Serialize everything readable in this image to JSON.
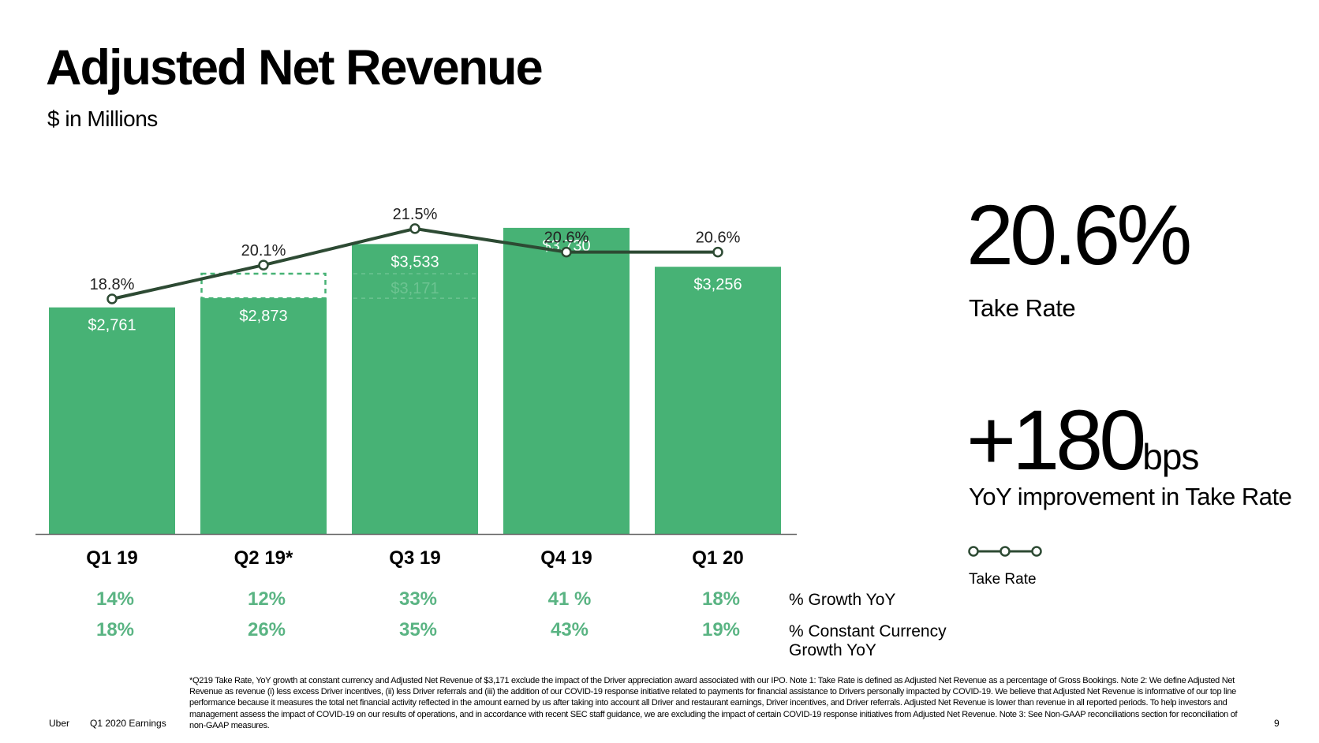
{
  "header": {
    "title": "Adjusted Net Revenue",
    "subtitle": "$ in Millions"
  },
  "chart_data": {
    "type": "bar",
    "categories": [
      "Q1 19",
      "Q2 19*",
      "Q3 19",
      "Q4 19",
      "Q1 20"
    ],
    "series": [
      {
        "type": "bar",
        "values": [
          2761,
          2873,
          3533,
          3730,
          3256
        ],
        "labels": [
          "$2,761",
          "$2,873",
          "$3,533",
          "$3,730",
          "$3,256"
        ],
        "color": "#47b275"
      },
      {
        "name": "Take Rate",
        "type": "line",
        "values": [
          18.8,
          20.1,
          21.5,
          20.6,
          20.6
        ],
        "labels": [
          "18.8%",
          "20.1%",
          "21.5%",
          "20.6%",
          "20.6%"
        ],
        "color": "#2d4a33"
      }
    ],
    "adjusted_q2": {
      "value": 3171,
      "label": "$3,171"
    },
    "growth_rows": [
      {
        "label": "% Growth YoY",
        "values": [
          "14%",
          "12%",
          "33%",
          "41 %",
          "18%"
        ]
      },
      {
        "label_lines": [
          "% Constant Currency",
          "Growth YoY"
        ],
        "values": [
          "18%",
          "26%",
          "35%",
          "43%",
          "19%"
        ]
      }
    ],
    "ylim": [
      0,
      4000
    ],
    "legend": "right",
    "grid": false
  },
  "kpis": {
    "take_rate_value": "20.6%",
    "take_rate_label": "Take Rate",
    "improvement_value": "+180",
    "improvement_unit": "bps",
    "improvement_label": "YoY improvement in Take Rate"
  },
  "legend": {
    "label": "Take Rate"
  },
  "footnote": "*Q219 Take Rate, YoY growth at constant currency and Adjusted Net Revenue of $3,171 exclude the impact of the Driver appreciation award associated with our IPO. Note 1: Take Rate is defined as Adjusted Net Revenue as a percentage of Gross Bookings. Note 2: We define Adjusted Net Revenue as revenue (i) less excess Driver incentives, (ii) less Driver referrals and (iii) the addition of our COVID-19 response initiative related to payments for financial assistance to Drivers personally impacted by COVID-19. We believe that Adjusted Net Revenue is informative of our top line performance because it measures the total net financial activity reflected in the amount earned by us after taking into account all Driver and restaurant earnings, Driver incentives, and Driver referrals. Adjusted Net Revenue is lower than revenue in all reported periods. To help investors and management assess the impact of COVID-19 on our results of operations, and in accordance with recent SEC staff guidance, we are excluding the impact of certain COVID-19 response initiatives from Adjusted Net Revenue. Note 3: See Non-GAAP reconciliations section for reconciliation of non-GAAP measures.",
  "footer": {
    "brand": "Uber",
    "deck": "Q1 2020 Earnings",
    "page": "9"
  },
  "colors": {
    "bar": "#47b275",
    "line": "#2d4a33",
    "growth_text": "#5ab483"
  }
}
